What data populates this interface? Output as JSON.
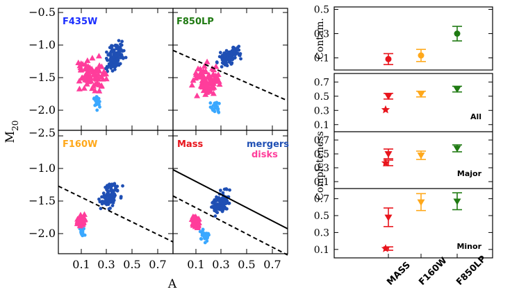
{
  "colors": {
    "mergers": "#1f4fb4",
    "mergers_light": "#3aa8ff",
    "disks": "#ff3d9b",
    "mass": "#e8141c",
    "f160w": "#ffa81a",
    "f850lp": "#1f7a12",
    "f435w_label": "#1a2eff"
  },
  "left_figure": {
    "xlabel": "A",
    "ylabel": "M",
    "ylabel_sub": "20",
    "x_ticks": [
      "0.1",
      "0.3",
      "0.5",
      "0.7"
    ],
    "y_ticks": [
      "−0.5",
      "−1.0",
      "−1.5",
      "−2.0",
      "−2.5"
    ],
    "x_ticks_bottom": [
      "0.1",
      "0.3",
      "0.5",
      "0.7"
    ],
    "y_ticks_bottom": [
      "−1.0",
      "−1.5",
      "−2.0"
    ],
    "panels": [
      {
        "id": "f435w",
        "label": "F435W",
        "label_color": "#1a2eff"
      },
      {
        "id": "f850lp",
        "label": "F850LP",
        "label_color": "#1f7a12"
      },
      {
        "id": "f160w",
        "label": "F160W",
        "label_color": "#ffa81a"
      },
      {
        "id": "mass",
        "label": "Mass",
        "label_color": "#e8141c"
      }
    ],
    "legend": {
      "mergers": "mergers",
      "disks": "disks"
    }
  },
  "chart_data": [
    {
      "type": "scatter",
      "title": "",
      "xlabel": "A",
      "ylabel": "M20",
      "xlim": [
        -0.05,
        0.85
      ],
      "ylim": [
        -2.5,
        -0.4
      ],
      "note": "Four-panel scatter of M20 vs asymmetry (F435W, F850LP, F160W, Mass); mergers = blue dots, disks = pink triangles",
      "separation_lines": [
        {
          "panel": "f850lp",
          "style": "dashed",
          "points": [
            [
              -0.05,
              -1.15
            ],
            [
              0.85,
              -2.0
            ]
          ]
        },
        {
          "panel": "f160w",
          "style": "dashed",
          "points": [
            [
              -0.05,
              -1.3
            ],
            [
              0.85,
              -2.15
            ]
          ]
        },
        {
          "panel": "mass",
          "style": "solid",
          "points": [
            [
              -0.05,
              -1.05
            ],
            [
              0.85,
              -1.95
            ]
          ]
        },
        {
          "panel": "mass",
          "style": "dashed",
          "points": [
            [
              -0.05,
              -1.45
            ],
            [
              0.85,
              -2.35
            ]
          ]
        }
      ]
    },
    {
      "type": "scatter",
      "title": "",
      "ylabel": "Contam.",
      "categories": [
        "MASS",
        "F160W",
        "F850LP"
      ],
      "ylim": [
        0.0,
        0.52
      ],
      "y_ticks": [
        "0.1",
        "0.3",
        "0.5"
      ],
      "series": [
        {
          "values": [
            0.09,
            0.12,
            0.3
          ],
          "errors": [
            0.045,
            0.05,
            0.06
          ],
          "colors": [
            "#e8141c",
            "#ffa81a",
            "#1f7a12"
          ],
          "marker": "circle"
        }
      ]
    },
    {
      "type": "scatter",
      "title": "",
      "ylabel": "Completeness",
      "categories": [
        "MASS",
        "F160W",
        "F850LP"
      ],
      "ylim": [
        0.0,
        0.82
      ],
      "y_ticks": [
        "0.1",
        "0.3",
        "0.5",
        "0.7"
      ],
      "subpanels": [
        {
          "label": "All",
          "series": [
            {
              "values": [
                0.5,
                0.53,
                0.6
              ],
              "errors": [
                0.04,
                0.04,
                0.04
              ],
              "marker": "triangle-down"
            },
            {
              "values": [
                0.31,
                null,
                null
              ],
              "errors": [
                0.0,
                null,
                null
              ],
              "marker": "star"
            }
          ]
        },
        {
          "label": "Major",
          "series": [
            {
              "values": [
                0.5,
                0.48,
                0.58
              ],
              "errors": [
                0.07,
                0.06,
                0.05
              ],
              "marker": "triangle-down"
            },
            {
              "values": [
                0.37,
                null,
                null
              ],
              "errors": [
                0.04,
                null,
                null
              ],
              "marker": "star"
            }
          ]
        },
        {
          "label": "Minor",
          "series": [
            {
              "values": [
                0.48,
                0.66,
                0.67
              ],
              "errors": [
                0.11,
                0.1,
                0.1
              ],
              "marker": "triangle-down"
            },
            {
              "values": [
                0.11,
                null,
                null
              ],
              "errors": [
                0.02,
                null,
                null
              ],
              "marker": "star"
            }
          ]
        }
      ]
    }
  ]
}
